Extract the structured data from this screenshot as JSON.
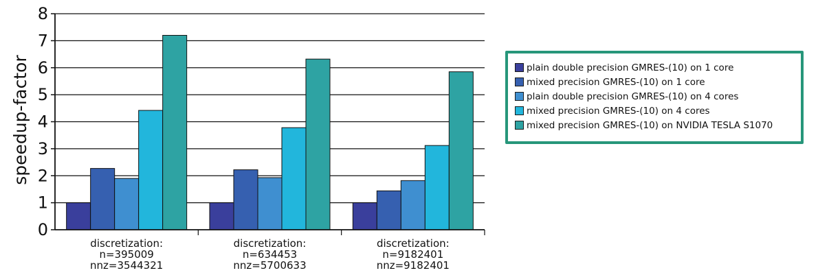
{
  "chart_data": {
    "type": "bar",
    "ylabel": "speedup-factor",
    "ylim": [
      0,
      8
    ],
    "yticks": [
      0,
      1,
      2,
      3,
      4,
      5,
      6,
      7,
      8
    ],
    "grid": true,
    "legend_position": "right",
    "categories": [
      [
        "discretization:",
        "n=395009",
        "nnz=3544321"
      ],
      [
        "discretization:",
        "n=634453",
        "nnz=5700633"
      ],
      [
        "discretization:",
        "n=9182401",
        "nnz=9182401"
      ]
    ],
    "series": [
      {
        "name": "plain double precision GMRES-(10) on 1 core",
        "color": "#3a3f9c",
        "values": [
          1.0,
          1.0,
          1.0
        ]
      },
      {
        "name": "mixed precision GMRES-(10) on 1 core",
        "color": "#3660b0",
        "values": [
          2.27,
          2.22,
          1.44
        ]
      },
      {
        "name": "plain double precision GMRES-(10) on 4 cores",
        "color": "#3f8fd0",
        "values": [
          1.9,
          1.93,
          1.82
        ]
      },
      {
        "name": "mixed precision GMRES-(10) on 4 cores",
        "color": "#22b6dc",
        "values": [
          4.42,
          3.78,
          3.12
        ]
      },
      {
        "name": "mixed precision GMRES-(10) on NVIDIA TESLA S1070",
        "color": "#2ea3a3",
        "values": [
          7.2,
          6.32,
          5.85
        ]
      }
    ]
  }
}
